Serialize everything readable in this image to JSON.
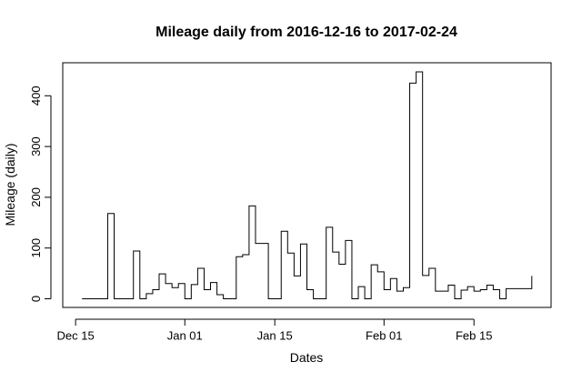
{
  "chart_data": {
    "type": "line",
    "step": true,
    "title": "Mileage daily from  2016-12-16  to  2017-02-24",
    "xlabel": "Dates",
    "ylabel": "Mileage (daily)",
    "x_start": "2016-12-16",
    "x_end": "2017-02-24",
    "xlim": [
      "2016-12-13",
      "2017-02-27"
    ],
    "ylim": [
      -17,
      465
    ],
    "x_ticks": [
      {
        "date": "2016-12-15",
        "label": "Dec 15"
      },
      {
        "date": "2017-01-01",
        "label": "Jan 01"
      },
      {
        "date": "2017-01-15",
        "label": "Jan 15"
      },
      {
        "date": "2017-02-01",
        "label": "Feb 01"
      },
      {
        "date": "2017-02-15",
        "label": "Feb 15"
      }
    ],
    "y_ticks": [
      0,
      100,
      200,
      300,
      400
    ],
    "series": [
      {
        "color": "#000000",
        "points": [
          [
            "2016-12-16",
            0
          ],
          [
            "2016-12-17",
            0
          ],
          [
            "2016-12-18",
            0
          ],
          [
            "2016-12-19",
            0
          ],
          [
            "2016-12-20",
            168
          ],
          [
            "2016-12-21",
            0
          ],
          [
            "2016-12-22",
            0
          ],
          [
            "2016-12-23",
            0
          ],
          [
            "2016-12-24",
            94
          ],
          [
            "2016-12-25",
            0
          ],
          [
            "2016-12-26",
            10
          ],
          [
            "2016-12-27",
            18
          ],
          [
            "2016-12-28",
            49
          ],
          [
            "2016-12-29",
            30
          ],
          [
            "2016-12-30",
            22
          ],
          [
            "2016-12-31",
            30
          ],
          [
            "2017-01-01",
            0
          ],
          [
            "2017-01-02",
            28
          ],
          [
            "2017-01-03",
            60
          ],
          [
            "2017-01-04",
            18
          ],
          [
            "2017-01-05",
            32
          ],
          [
            "2017-01-06",
            8
          ],
          [
            "2017-01-07",
            0
          ],
          [
            "2017-01-08",
            0
          ],
          [
            "2017-01-09",
            83
          ],
          [
            "2017-01-10",
            87
          ],
          [
            "2017-01-11",
            183
          ],
          [
            "2017-01-12",
            109
          ],
          [
            "2017-01-13",
            109
          ],
          [
            "2017-01-14",
            0
          ],
          [
            "2017-01-15",
            0
          ],
          [
            "2017-01-16",
            133
          ],
          [
            "2017-01-17",
            90
          ],
          [
            "2017-01-18",
            45
          ],
          [
            "2017-01-19",
            108
          ],
          [
            "2017-01-20",
            18
          ],
          [
            "2017-01-21",
            0
          ],
          [
            "2017-01-22",
            0
          ],
          [
            "2017-01-23",
            141
          ],
          [
            "2017-01-24",
            92
          ],
          [
            "2017-01-25",
            68
          ],
          [
            "2017-01-26",
            115
          ],
          [
            "2017-01-27",
            0
          ],
          [
            "2017-01-28",
            24
          ],
          [
            "2017-01-29",
            0
          ],
          [
            "2017-01-30",
            67
          ],
          [
            "2017-01-31",
            53
          ],
          [
            "2017-02-01",
            18
          ],
          [
            "2017-02-02",
            40
          ],
          [
            "2017-02-03",
            15
          ],
          [
            "2017-02-04",
            22
          ],
          [
            "2017-02-05",
            425
          ],
          [
            "2017-02-06",
            447
          ],
          [
            "2017-02-07",
            46
          ],
          [
            "2017-02-08",
            60
          ],
          [
            "2017-02-09",
            15
          ],
          [
            "2017-02-10",
            15
          ],
          [
            "2017-02-11",
            27
          ],
          [
            "2017-02-12",
            0
          ],
          [
            "2017-02-13",
            17
          ],
          [
            "2017-02-14",
            24
          ],
          [
            "2017-02-15",
            15
          ],
          [
            "2017-02-16",
            18
          ],
          [
            "2017-02-17",
            27
          ],
          [
            "2017-02-18",
            18
          ],
          [
            "2017-02-19",
            0
          ],
          [
            "2017-02-20",
            20
          ],
          [
            "2017-02-21",
            20
          ],
          [
            "2017-02-22",
            20
          ],
          [
            "2017-02-23",
            20
          ],
          [
            "2017-02-24",
            45
          ]
        ]
      }
    ],
    "grid": false,
    "legend": "none"
  }
}
